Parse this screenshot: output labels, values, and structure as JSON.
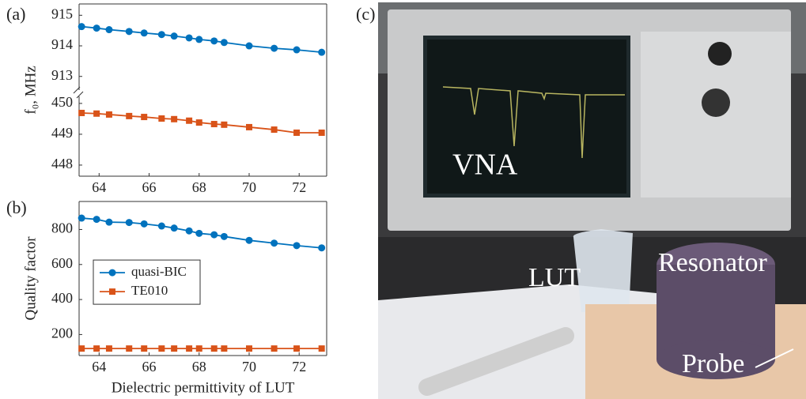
{
  "chart_data": [
    {
      "type": "line",
      "panel_label": "(a)",
      "ylabel": "f₀, MHz",
      "x": [
        63.3,
        63.9,
        64.4,
        65.2,
        65.8,
        66.5,
        67.0,
        67.6,
        68.0,
        68.6,
        69.0,
        70.0,
        71.0,
        71.9,
        72.9
      ],
      "xlim": [
        63.2,
        73.1
      ],
      "ylim": [
        912.45,
        915.37
      ],
      "yticks": [
        913,
        914,
        915
      ],
      "series": [
        {
          "color": "#0072bd",
          "marker": "circle",
          "values": [
            914.63,
            914.58,
            914.53,
            914.47,
            914.42,
            914.37,
            914.32,
            914.26,
            914.21,
            914.16,
            914.11,
            914.0,
            913.92,
            913.87,
            913.79
          ]
        }
      ]
    },
    {
      "type": "line",
      "x": [
        63.3,
        63.9,
        64.4,
        65.2,
        65.8,
        66.5,
        67.0,
        67.6,
        68.0,
        68.6,
        69.0,
        70.0,
        71.0,
        71.9,
        72.9
      ],
      "xlim": [
        63.2,
        73.1
      ],
      "xticks": [
        64,
        66,
        68,
        70,
        72
      ],
      "ylim": [
        447.64,
        450.33
      ],
      "yticks": [
        448,
        449,
        450
      ],
      "series": [
        {
          "color": "#d95319",
          "marker": "square",
          "values": [
            449.69,
            449.67,
            449.64,
            449.59,
            449.56,
            449.51,
            449.49,
            449.44,
            449.38,
            449.33,
            449.31,
            449.23,
            449.15,
            449.05,
            449.05
          ]
        }
      ]
    },
    {
      "type": "line",
      "panel_label": "(b)",
      "ylabel": "Quality factor",
      "xlabel": "Dielectric permittivity of LUT",
      "x": [
        63.3,
        63.9,
        64.4,
        65.2,
        65.8,
        66.5,
        67.0,
        67.6,
        68.0,
        68.6,
        69.0,
        70.0,
        71.0,
        71.9,
        72.9
      ],
      "xlim": [
        63.2,
        73.1
      ],
      "xticks": [
        64,
        66,
        68,
        70,
        72
      ],
      "ylim": [
        80,
        960
      ],
      "yticks": [
        200,
        400,
        600,
        800
      ],
      "legend": "center-left",
      "series": [
        {
          "name": "quasi-BIC",
          "color": "#0072bd",
          "marker": "circle",
          "values": [
            865,
            858,
            842,
            840,
            832,
            820,
            808,
            792,
            778,
            770,
            760,
            738,
            722,
            708,
            695
          ]
        },
        {
          "name": "TE010",
          "color": "#d95319",
          "marker": "square",
          "values": [
            120,
            120,
            120,
            120,
            120,
            120,
            120,
            120,
            120,
            120,
            120,
            120,
            120,
            120,
            120
          ]
        }
      ]
    }
  ],
  "photo": {
    "panel_label": "(c)",
    "labels": [
      "VNA",
      "LUT",
      "Resonator",
      "Probe"
    ]
  }
}
